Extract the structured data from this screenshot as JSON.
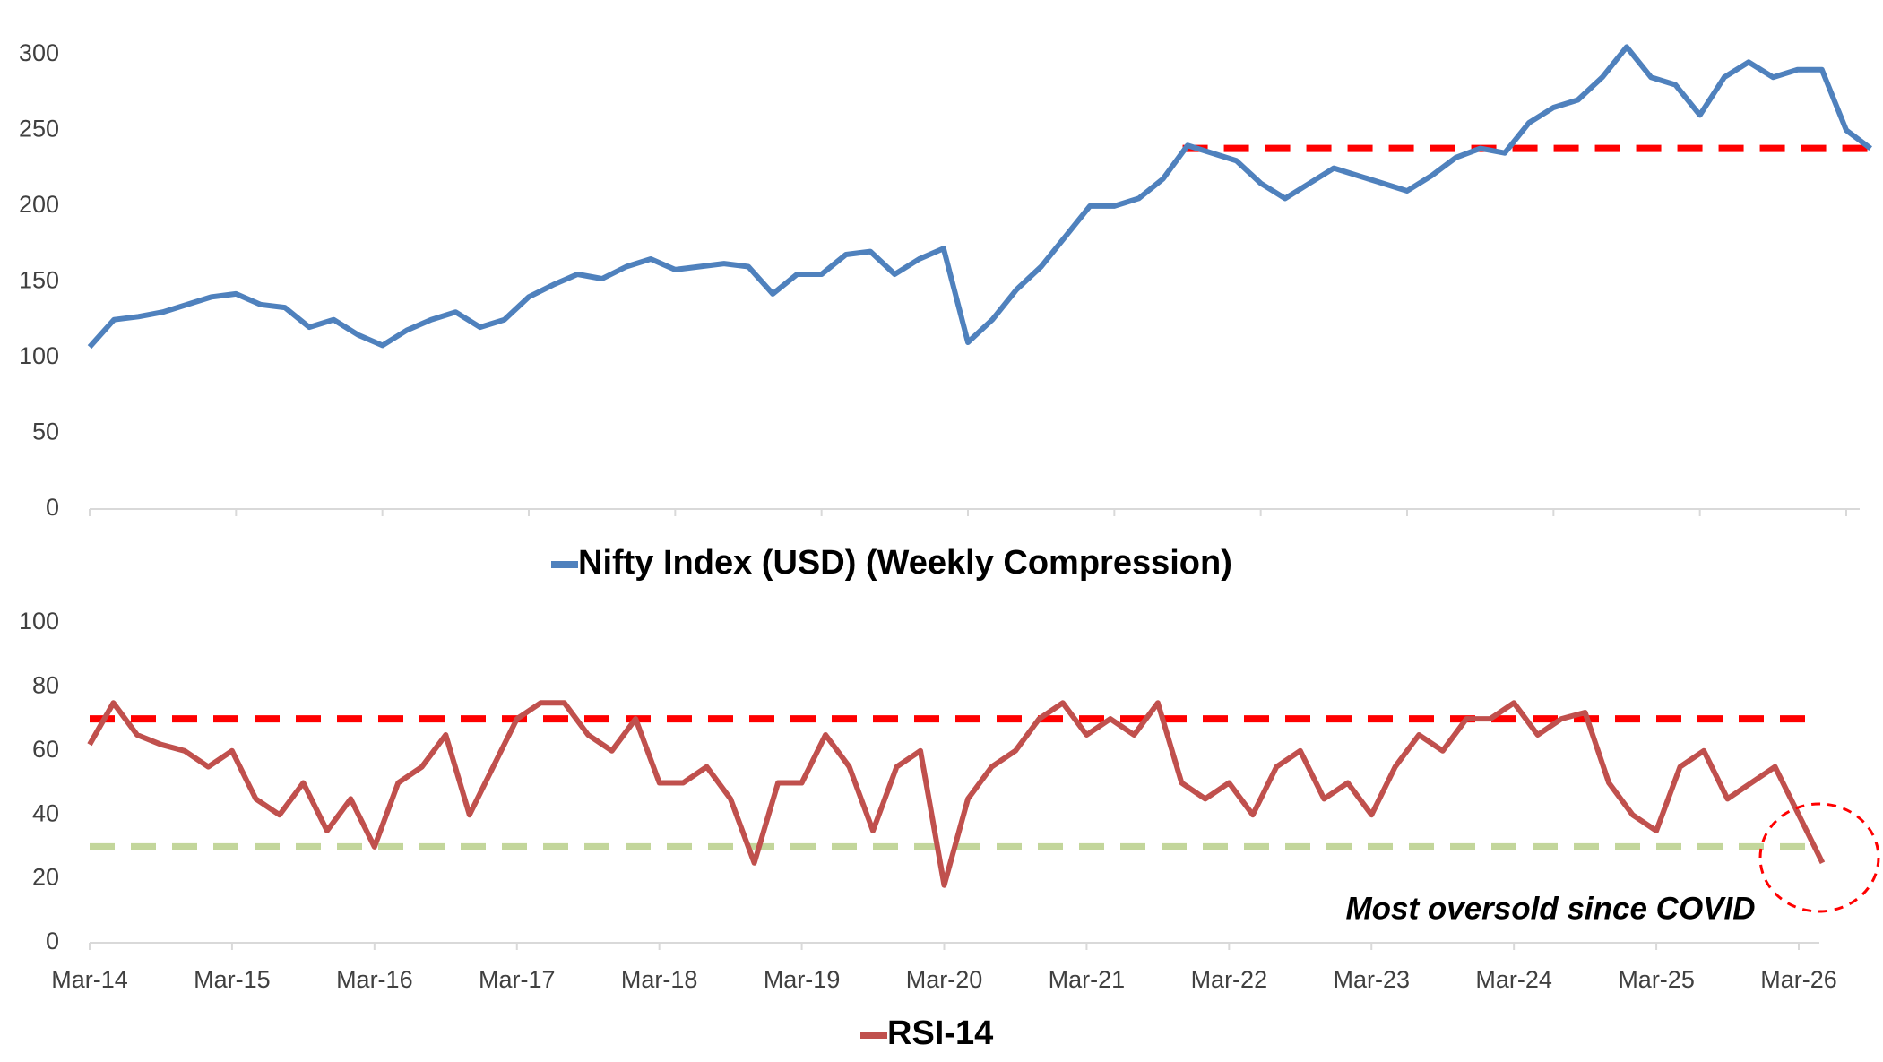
{
  "chart_data": [
    {
      "type": "line",
      "series": [
        {
          "name": "Nifty Index (USD) (Weekly Compression)",
          "color": "#4f81bd",
          "values": [
            107,
            125,
            127,
            130,
            135,
            140,
            142,
            135,
            133,
            120,
            125,
            115,
            108,
            118,
            125,
            130,
            120,
            125,
            140,
            148,
            155,
            152,
            160,
            165,
            158,
            160,
            162,
            160,
            142,
            155,
            155,
            168,
            170,
            155,
            165,
            172,
            110,
            125,
            145,
            160,
            180,
            200,
            200,
            205,
            218,
            240,
            235,
            230,
            215,
            205,
            215,
            225,
            220,
            215,
            210,
            220,
            232,
            238,
            235,
            255,
            265,
            270,
            285,
            305,
            285,
            280,
            260,
            285,
            295,
            285,
            290,
            290,
            250,
            238
          ]
        }
      ],
      "ylim": [
        0,
        320
      ],
      "yticks": [
        0,
        50,
        100,
        150,
        200,
        250,
        300
      ],
      "reference_lines": [
        {
          "value": 238,
          "color": "#ff0000"
        }
      ]
    },
    {
      "type": "line",
      "categories": [
        "Mar-14",
        null,
        null,
        null,
        null,
        null,
        "Mar-15",
        null,
        null,
        null,
        null,
        null,
        "Mar-16",
        null,
        null,
        null,
        null,
        null,
        "Mar-17",
        null,
        null,
        null,
        null,
        null,
        "Mar-18",
        null,
        null,
        null,
        null,
        null,
        "Mar-19",
        null,
        null,
        null,
        null,
        null,
        "Mar-20",
        null,
        null,
        null,
        null,
        null,
        "Mar-21",
        null,
        null,
        null,
        null,
        null,
        "Mar-22",
        null,
        null,
        null,
        null,
        null,
        "Mar-23",
        null,
        null,
        null,
        null,
        null,
        "Mar-24",
        null,
        null,
        null,
        null,
        null,
        "Mar-25",
        null,
        null,
        null,
        null,
        null,
        "Mar-26",
        null
      ],
      "series": [
        {
          "name": "RSI-14",
          "color": "#c0504d",
          "values": [
            62,
            75,
            65,
            62,
            60,
            55,
            60,
            45,
            40,
            50,
            35,
            45,
            30,
            50,
            55,
            65,
            40,
            55,
            70,
            75,
            75,
            65,
            60,
            70,
            50,
            50,
            55,
            45,
            25,
            50,
            50,
            65,
            55,
            35,
            55,
            60,
            18,
            45,
            55,
            60,
            70,
            75,
            65,
            70,
            65,
            75,
            50,
            45,
            50,
            40,
            55,
            60,
            45,
            50,
            40,
            55,
            65,
            60,
            70,
            70,
            75,
            65,
            70,
            72,
            50,
            40,
            35,
            55,
            60,
            45,
            50,
            55,
            40,
            25
          ]
        }
      ],
      "ylim": [
        0,
        100
      ],
      "yticks": [
        0,
        20,
        40,
        60,
        80,
        100
      ],
      "reference_lines": [
        {
          "value": 70,
          "color": "#ff0000"
        },
        {
          "value": 30,
          "color": "#c3d69b"
        }
      ],
      "annotation": "Most oversold since COVID"
    }
  ]
}
